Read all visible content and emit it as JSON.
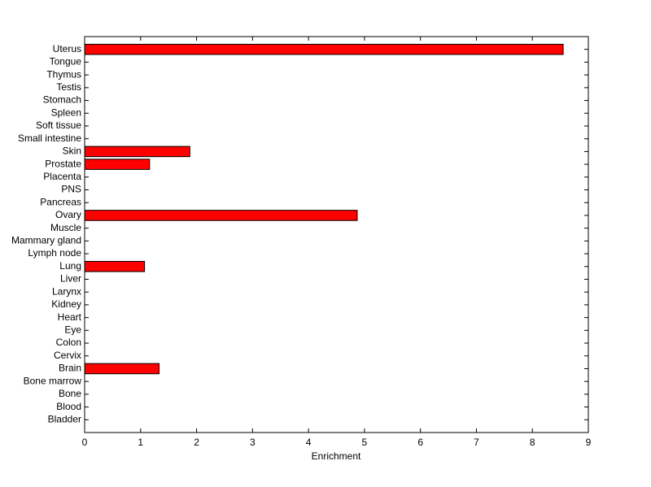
{
  "chart_data": {
    "type": "bar",
    "orientation": "horizontal",
    "xlabel": "Enrichment",
    "categories": [
      "Bladder",
      "Blood",
      "Bone",
      "Bone marrow",
      "Brain",
      "Cervix",
      "Colon",
      "Eye",
      "Heart",
      "Kidney",
      "Larynx",
      "Liver",
      "Lung",
      "Lymph node",
      "Mammary gland",
      "Muscle",
      "Ovary",
      "Pancreas",
      "PNS",
      "Placenta",
      "Prostate",
      "Skin",
      "Small intestine",
      "Soft tissue",
      "Spleen",
      "Stomach",
      "Testis",
      "Thymus",
      "Tongue",
      "Uterus"
    ],
    "values": [
      0,
      0,
      0,
      0,
      1.33,
      0,
      0,
      0,
      0,
      0,
      0,
      0,
      1.07,
      0,
      0,
      0,
      4.87,
      0,
      0,
      0,
      1.16,
      1.88,
      0,
      0,
      0,
      0,
      0,
      0,
      0,
      8.55
    ],
    "color": "#ff0000",
    "xlim": [
      0,
      9
    ],
    "xticks": [
      0,
      1,
      2,
      3,
      4,
      5,
      6,
      7,
      8,
      9
    ]
  }
}
